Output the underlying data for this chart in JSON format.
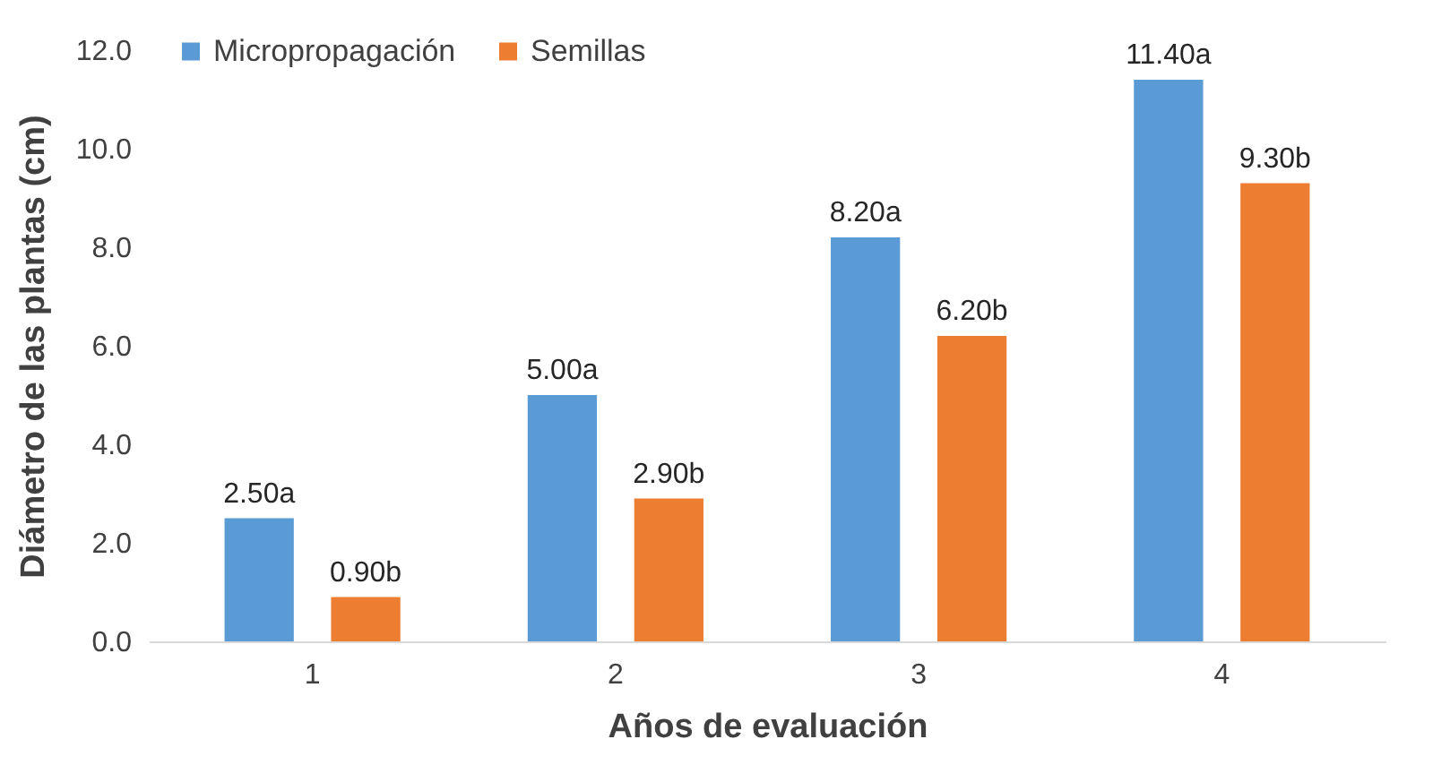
{
  "chart_data": {
    "type": "bar",
    "xlabel": "Años de evaluación",
    "ylabel": "Diámetro de las plantas (cm)",
    "categories": [
      "1",
      "2",
      "3",
      "4"
    ],
    "series": [
      {
        "name": "Micropropagación",
        "color": "#5b9bd5",
        "values": [
          2.5,
          5.0,
          8.2,
          11.4
        ],
        "value_labels": [
          "2.50a",
          "5.00a",
          "8.20a",
          "11.40a"
        ]
      },
      {
        "name": "Semillas",
        "color": "#ed7d31",
        "values": [
          0.9,
          2.9,
          6.2,
          9.3
        ],
        "value_labels": [
          "0.90b",
          "2.90b",
          "6.20b",
          "9.30b"
        ]
      }
    ],
    "ylim": [
      0,
      12
    ],
    "yticks": [
      {
        "value": 0,
        "label": "0.0"
      },
      {
        "value": 2,
        "label": "2.0"
      },
      {
        "value": 4,
        "label": "4.0"
      },
      {
        "value": 6,
        "label": "6.0"
      },
      {
        "value": 8,
        "label": "8.0"
      },
      {
        "value": 10,
        "label": "10.0"
      },
      {
        "value": 12,
        "label": "12.0"
      }
    ],
    "grid": false,
    "legend": "top left"
  }
}
